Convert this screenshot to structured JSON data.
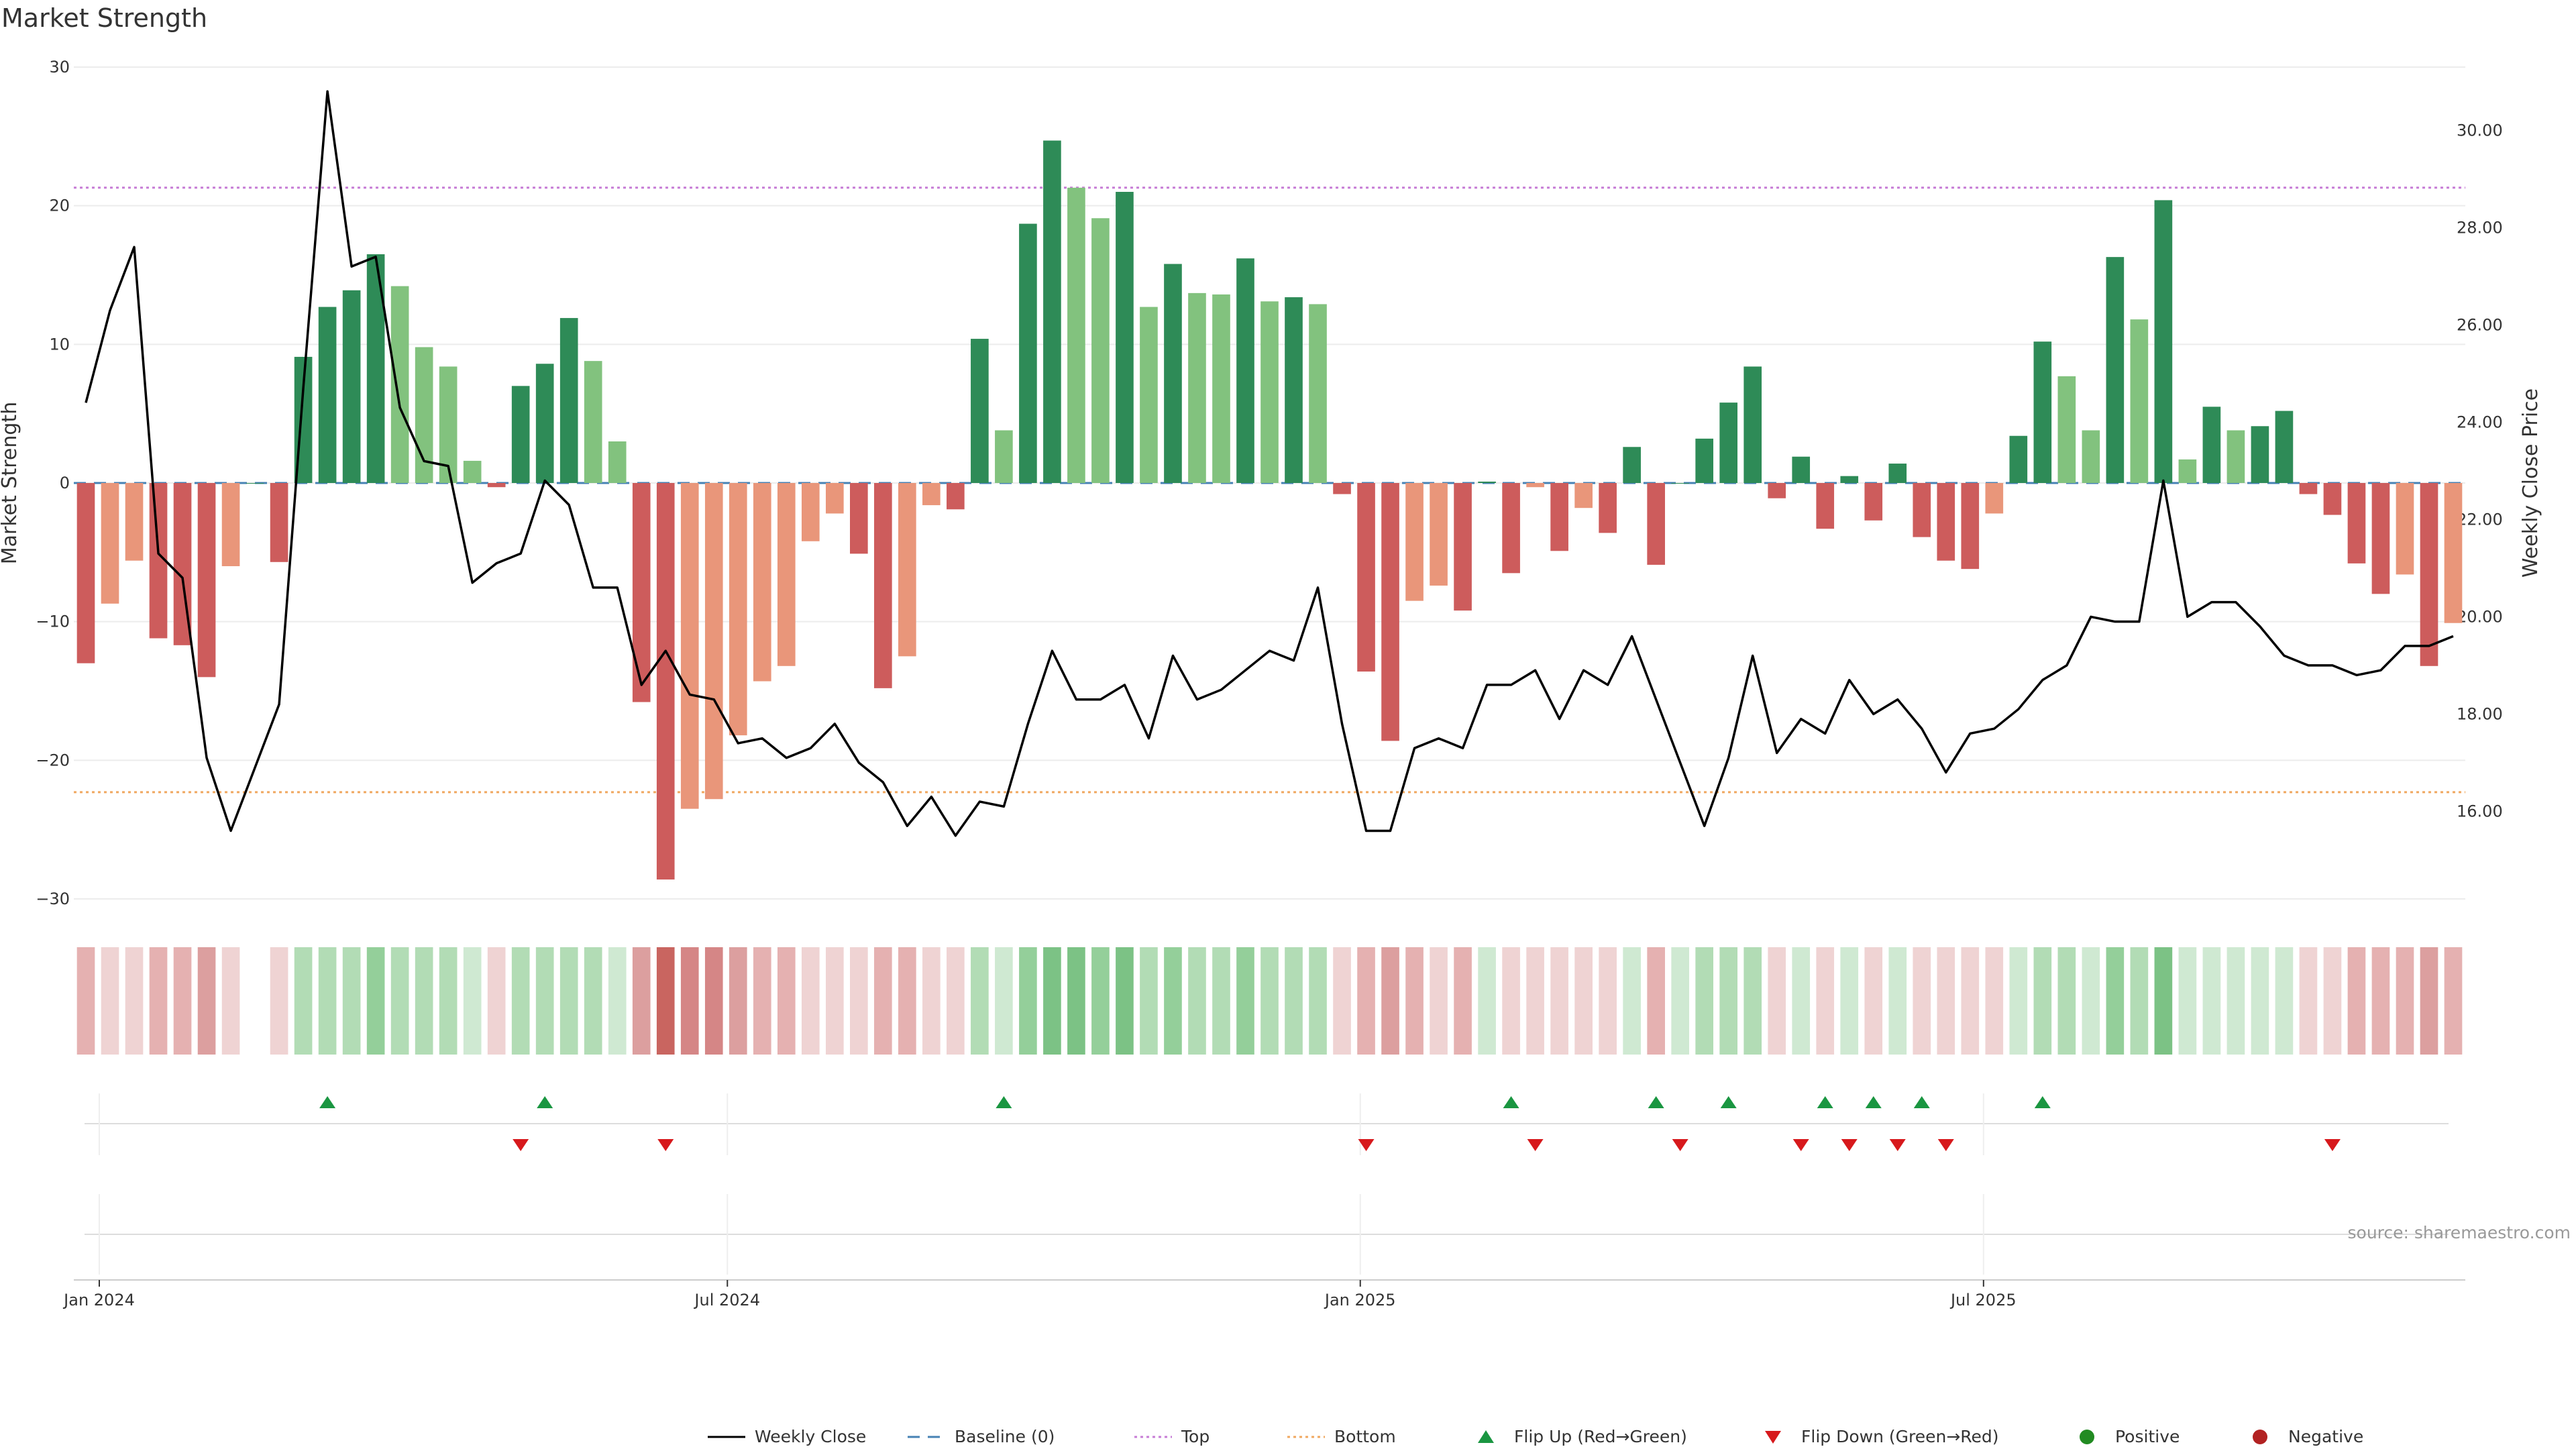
{
  "title": "Market Strength",
  "source": "source: sharemaestro.com",
  "colors": {
    "strong_green": "#2e8b57",
    "light_green": "#82c27e",
    "strong_red": "#cd5c5c",
    "light_red": "#e9967a",
    "price_line": "#000000",
    "baseline": "#4682b4",
    "top": "#c77dd6",
    "bottom": "#f0a860",
    "flip_up": "#1a9641",
    "flip_down": "#d7191c",
    "positive": "#228b22",
    "negative": "#b22222"
  },
  "chart_data": {
    "type": "bar",
    "title": "Market Strength",
    "ylabel": "Market Strength",
    "y2label": "Weekly Close Price",
    "ylim": [
      -30,
      30
    ],
    "y2lim": [
      14.2,
      31.3
    ],
    "yticks": [
      "30",
      "20",
      "10",
      "0",
      "−10",
      "−20",
      "−30"
    ],
    "y2ticks": [
      "30.00",
      "28.00",
      "26.00",
      "24.00",
      "22.00",
      "20.00",
      "18.00",
      "16.00"
    ],
    "x_ticks": [
      {
        "label": "Jan 2024",
        "week": 1
      },
      {
        "label": "Jul 2024",
        "week": 27
      },
      {
        "label": "Jan 2025",
        "week": 53.2
      },
      {
        "label": "Jul 2025",
        "week": 79
      }
    ],
    "top_level": 21.3,
    "bottom_level": -22.3,
    "series": [
      {
        "name": "Market Strength",
        "values": [
          -13,
          -8.7,
          -5.6,
          -11.2,
          -11.7,
          -14,
          -6,
          0,
          -5.7,
          9.1,
          12.7,
          13.9,
          16.5,
          14.2,
          9.8,
          8.4,
          1.6,
          -0.3,
          7,
          8.6,
          11.9,
          8.8,
          3,
          -15.8,
          -28.6,
          -23.5,
          -22.8,
          -18.2,
          -14.3,
          -13.2,
          -4.2,
          -2.2,
          -5.1,
          -14.8,
          -12.5,
          -1.6,
          -1.9,
          10.4,
          3.8,
          18.7,
          24.7,
          21.3,
          19.1,
          21,
          12.7,
          15.8,
          13.7,
          13.6,
          16.2,
          13.1,
          13.4,
          12.9,
          -0.8,
          -13.6,
          -18.6,
          -8.5,
          -7.4,
          -9.2,
          0.1,
          -6.5,
          -0.3,
          -4.9,
          -1.8,
          -3.6,
          2.6,
          -5.9,
          0,
          3.2,
          5.8,
          8.4,
          -1.1,
          1.9,
          -3.3,
          0.5,
          -2.7,
          1.4,
          -3.9,
          -5.6,
          -6.2,
          -2.2,
          3.4,
          10.2,
          7.7,
          3.8,
          16.3,
          11.8,
          20.4,
          1.7,
          5.5,
          3.8,
          4.1,
          5.2,
          -0.8,
          -2.3,
          -5.8,
          -8,
          -6.6,
          -13.2,
          -10.1
        ]
      },
      {
        "name": "Weekly Close",
        "values": [
          24.4,
          26.3,
          27.6,
          21.3,
          20.8,
          17.1,
          15.6,
          16.9,
          18.2,
          24.7,
          30.8,
          27.2,
          27.4,
          24.3,
          23.2,
          23.1,
          20.7,
          21.1,
          21.3,
          22.8,
          22.3,
          20.6,
          20.6,
          18.6,
          19.3,
          18.4,
          18.3,
          17.4,
          17.5,
          17.1,
          17.3,
          17.8,
          17.0,
          16.6,
          15.7,
          16.3,
          15.5,
          16.2,
          16.1,
          17.8,
          19.3,
          18.3,
          18.3,
          18.6,
          17.5,
          19.2,
          18.3,
          18.5,
          18.9,
          19.3,
          19.1,
          20.6,
          17.8,
          15.6,
          15.6,
          17.3,
          17.5,
          17.3,
          18.6,
          18.6,
          18.9,
          17.9,
          18.9,
          18.6,
          19.6,
          18.3,
          17.0,
          15.7,
          17.1,
          19.2,
          17.2,
          17.9,
          17.6,
          18.7,
          18.0,
          18.3,
          17.7,
          16.8,
          17.6,
          17.7,
          18.1,
          18.7,
          19.0,
          20.0,
          19.9,
          19.9,
          22.8,
          20.0,
          20.3,
          20.3,
          19.8,
          19.2,
          19.0,
          19.0,
          18.8,
          18.9,
          19.4,
          19.4,
          19.6
        ]
      }
    ],
    "heatmap_row": [
      -2,
      -1,
      -1,
      -2,
      -2,
      -3,
      -1,
      null,
      -1,
      2,
      2,
      2,
      3,
      2,
      2,
      2,
      1,
      -1,
      2,
      2,
      2,
      2,
      1,
      -3,
      -5,
      -4,
      -4,
      -3,
      -2,
      -2,
      -1,
      -1,
      -1,
      -2,
      -2,
      -1,
      -1,
      2,
      1,
      3,
      4,
      4,
      3,
      4,
      2,
      3,
      2,
      2,
      3,
      2,
      2,
      2,
      -1,
      -2,
      -3,
      -2,
      -1,
      -2,
      1,
      -1,
      -1,
      -1,
      -1,
      -1,
      1,
      -2,
      1,
      2,
      2,
      2,
      -1,
      1,
      -1,
      1,
      -1,
      1,
      -1,
      -1,
      -1,
      -1,
      1,
      2,
      2,
      1,
      3,
      2,
      4,
      1,
      1,
      1,
      1,
      1,
      -1,
      -1,
      -2,
      -2,
      -2,
      -3,
      -2
    ],
    "flip_up_weeks": [
      10,
      19,
      38,
      59,
      65,
      68,
      72,
      74,
      76,
      81
    ],
    "flip_down_weeks": [
      18,
      24,
      53,
      60,
      66,
      71,
      73,
      75,
      77,
      93
    ],
    "positive_weeks": [],
    "negative_weeks": [],
    "legend": [
      "Weekly Close",
      "Baseline (0)",
      "Top",
      "Bottom",
      "Flip Up (Red→Green)",
      "Flip Down (Green→Red)",
      "Positive",
      "Negative"
    ],
    "legend_position": "bottom-center",
    "grid": true
  }
}
